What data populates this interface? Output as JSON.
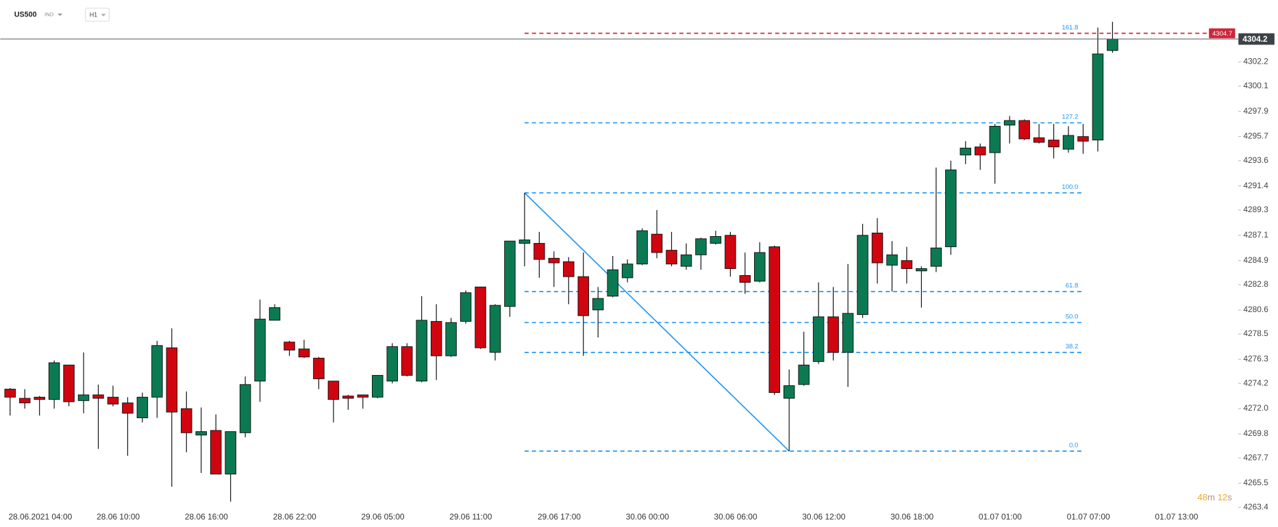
{
  "header": {
    "symbol": "US500",
    "market": "IND",
    "timeframe": "H1"
  },
  "chart_data": {
    "type": "candlestick",
    "categories": [
      "28.06.2021 04:00",
      null,
      null,
      null,
      null,
      null,
      "28.06 10:00",
      null,
      null,
      null,
      null,
      null,
      "28.06 16:00",
      null,
      null,
      null,
      null,
      null,
      "28.06 22:00",
      null,
      null,
      null,
      null,
      null,
      "29.06 05:00",
      null,
      null,
      null,
      null,
      null,
      "29.06 11:00",
      null,
      null,
      null,
      null,
      null,
      "29.06 17:00",
      null,
      null,
      null,
      null,
      null,
      "30.06 00:00",
      null,
      null,
      null,
      null,
      null,
      "30.06 06:00",
      null,
      null,
      null,
      null,
      null,
      "30.06 12:00",
      null,
      null,
      null,
      null,
      null,
      "30.06 18:00",
      null,
      null,
      null,
      null,
      null,
      "01.07 01:00",
      null,
      null,
      null,
      null,
      null,
      "01.07 07:00",
      null,
      null,
      null,
      null,
      null,
      "01.07 13:00"
    ],
    "open": [
      4273.7,
      4272.9,
      4273.0,
      4272.8,
      4275.8,
      4272.7,
      4273.2,
      4273.0,
      4272.5,
      4271.2,
      4273.0,
      4277.3,
      4272.0,
      4269.7,
      4270.1,
      4266.3,
      4269.9,
      4274.4,
      4279.7,
      4277.8,
      4277.2,
      4276.4,
      4274.4,
      4273.1,
      4273.2,
      4273.0,
      4274.4,
      4277.4,
      4274.4,
      4279.6,
      4276.6,
      4279.6,
      4282.6,
      4276.9,
      4280.9,
      4286.4,
      4286.4,
      4285.1,
      4284.8,
      4283.5,
      4280.6,
      4281.8,
      4283.4,
      4284.6,
      4287.2,
      4285.8,
      4284.4,
      4285.4,
      4286.4,
      4287.1,
      4283.6,
      4283.1,
      4286.1,
      4272.9,
      4274.1,
      4276.1,
      4280.0,
      4276.9,
      4280.2,
      4287.3,
      4284.5,
      4284.9,
      4284.0,
      4284.4,
      4286.1,
      4294.1,
      4294.8,
      4294.3,
      4296.7,
      4297.1,
      4295.6,
      4295.4,
      4294.6,
      4295.7,
      4295.4,
      4303.2,
      null,
      null,
      null
    ],
    "high": [
      4273.8,
      4273.7,
      4273.1,
      4276.2,
      4275.8,
      4276.9,
      4274.1,
      4274.0,
      4273.0,
      4273.4,
      4277.9,
      4279.0,
      4273.5,
      4272.1,
      4271.5,
      4270.0,
      4274.8,
      4281.5,
      4281.1,
      4277.9,
      4278.0,
      4276.5,
      4274.4,
      4273.2,
      4273.2,
      4274.9,
      4277.7,
      4277.7,
      4281.8,
      4281.1,
      4279.9,
      4282.3,
      4282.6,
      4281.1,
      4286.6,
      4290.8,
      4287.4,
      4285.7,
      4285.2,
      4285.6,
      4282.6,
      4285.3,
      4285.0,
      4287.7,
      4289.3,
      4287.4,
      4286.4,
      4286.9,
      4287.5,
      4287.4,
      4285.6,
      4286.5,
      4286.2,
      4275.4,
      4278.7,
      4283.0,
      4282.6,
      4284.6,
      4288.1,
      4288.6,
      4286.6,
      4286.1,
      4284.4,
      4293.0,
      4293.6,
      4295.3,
      4295.1,
      4296.8,
      4297.5,
      4297.2,
      4296.8,
      4296.8,
      4296.6,
      4296.8,
      4305.2,
      4305.7,
      null,
      null,
      null
    ],
    "low": [
      4271.4,
      4272.0,
      4271.4,
      4272.0,
      4272.2,
      4271.6,
      4268.5,
      4272.2,
      4267.9,
      4270.8,
      4271.2,
      4265.2,
      4268.2,
      4266.4,
      4266.3,
      4263.9,
      4269.5,
      4272.6,
      4279.7,
      4276.6,
      4276.4,
      4273.7,
      4270.8,
      4271.9,
      4272.0,
      4272.9,
      4274.2,
      4274.8,
      4274.3,
      4274.5,
      4276.5,
      4279.4,
      4277.2,
      4276.2,
      4280.0,
      4284.4,
      4283.4,
      4282.6,
      4281.1,
      4276.6,
      4278.2,
      4281.7,
      4283.0,
      4284.5,
      4285.1,
      4284.4,
      4284.1,
      4284.1,
      4286.3,
      4283.5,
      4282.0,
      4283.0,
      4273.2,
      4268.3,
      4274.0,
      4275.9,
      4276.2,
      4273.9,
      4279.9,
      4282.9,
      4282.2,
      4282.9,
      4280.8,
      4283.9,
      4285.4,
      4293.3,
      4292.8,
      4291.6,
      4295.1,
      4295.4,
      4295.1,
      4293.8,
      4294.3,
      4294.2,
      4294.4,
      4303.0,
      null,
      null,
      null
    ],
    "close": [
      4273.0,
      4272.5,
      4272.8,
      4276.0,
      4272.6,
      4273.2,
      4272.9,
      4272.4,
      4271.6,
      4273.0,
      4277.5,
      4271.7,
      4269.9,
      4270.0,
      4266.3,
      4270.0,
      4274.1,
      4279.8,
      4280.8,
      4277.1,
      4276.5,
      4274.6,
      4272.8,
      4272.9,
      4273.0,
      4274.9,
      4277.4,
      4274.9,
      4279.7,
      4276.6,
      4279.5,
      4282.1,
      4277.3,
      4281.0,
      4286.6,
      4286.7,
      4285.0,
      4284.7,
      4283.5,
      4280.1,
      4281.6,
      4284.1,
      4284.6,
      4287.5,
      4285.6,
      4284.6,
      4285.4,
      4286.8,
      4287.0,
      4284.2,
      4283.0,
      4285.6,
      4273.4,
      4274.0,
      4275.8,
      4280.0,
      4276.9,
      4280.3,
      4287.1,
      4284.7,
      4285.4,
      4284.2,
      4284.2,
      4286.0,
      4292.8,
      4294.7,
      4294.1,
      4296.6,
      4297.1,
      4295.5,
      4295.2,
      4294.8,
      4295.8,
      4295.3,
      4302.9,
      4304.2,
      null,
      null,
      null
    ],
    "up_color": "#0b7a52",
    "down_color": "#d0050f",
    "ylim": [
      4263.4,
      4307.6
    ],
    "yticks": [
      4302.2,
      4300.1,
      4297.9,
      4295.7,
      4293.6,
      4291.4,
      4289.3,
      4287.1,
      4284.9,
      4282.8,
      4280.6,
      4278.5,
      4276.3,
      4274.2,
      {
        "value": 4272.0,
        "label": "4272.0"
      },
      4269.8,
      4267.7,
      4265.5,
      4263.4
    ],
    "grid": false,
    "fibonacci": {
      "start_index": 35,
      "end_index": 73,
      "color": "#2196f3",
      "top_color": "#d0243a",
      "levels": [
        {
          "label": "161.8",
          "price": 4304.7
        },
        {
          "label": "127.2",
          "price": 4296.9
        },
        {
          "label": "100.0",
          "price": 4290.8
        },
        {
          "label": "61.8",
          "price": 4282.2
        },
        {
          "label": "50.0",
          "price": 4279.5
        },
        {
          "label": "38.2",
          "price": 4276.9
        },
        {
          "label": "0.0",
          "price": 4268.3
        }
      ]
    },
    "countdown": {
      "minutes": "48",
      "minutes_unit": "m",
      "seconds": "12",
      "seconds_unit": "s"
    }
  }
}
